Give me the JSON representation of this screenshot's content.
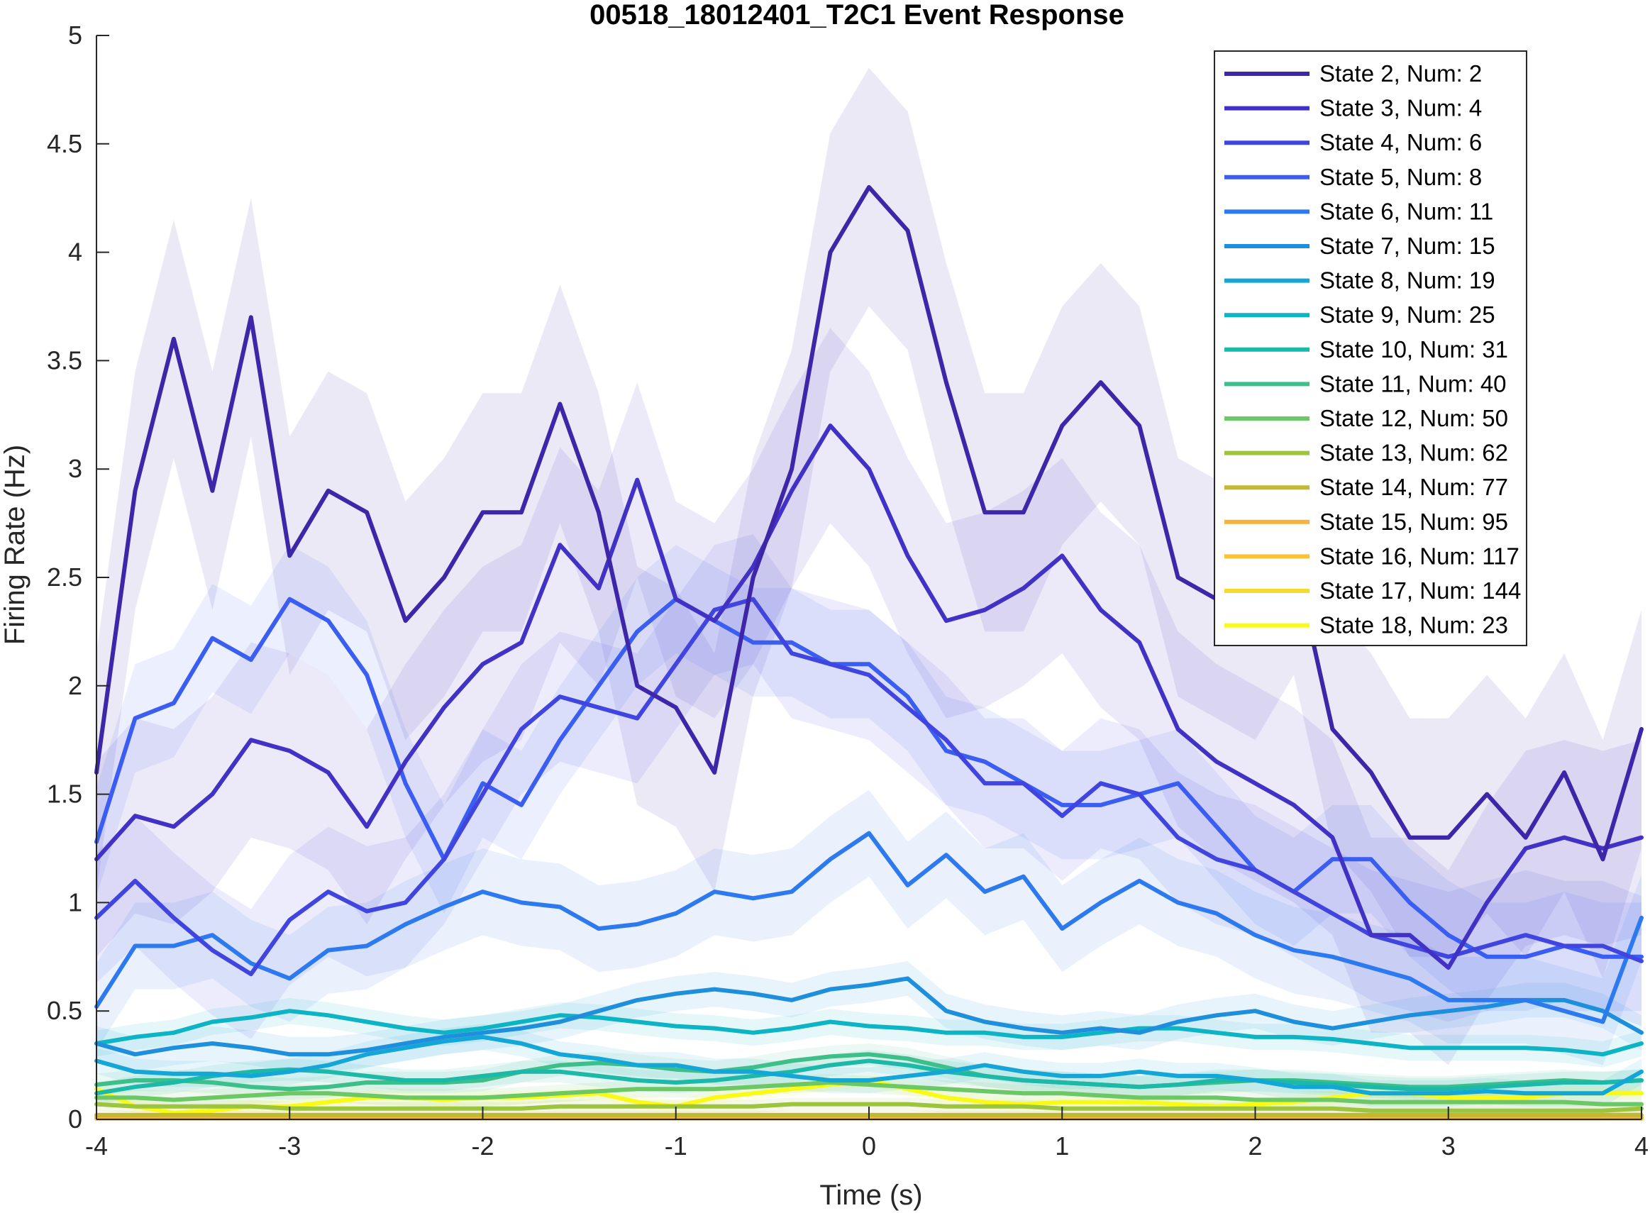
{
  "chart_data": {
    "type": "line",
    "title": "00518_18012401_T2C1 Event Response",
    "xlabel": "Time (s)",
    "ylabel": "Firing Rate (Hz)",
    "xlim": [
      -4,
      4
    ],
    "ylim": [
      0,
      5
    ],
    "xticks": [
      "-4",
      "-3",
      "-2",
      "-1",
      "0",
      "1",
      "2",
      "3",
      "4"
    ],
    "yticks": [
      "0",
      "0.5",
      "1",
      "1.5",
      "2",
      "2.5",
      "3",
      "3.5",
      "4",
      "4.5",
      "5"
    ],
    "legend_position": "top-right",
    "x": [
      -4.0,
      -3.8,
      -3.6,
      -3.4,
      -3.2,
      -3.0,
      -2.8,
      -2.6,
      -2.4,
      -2.2,
      -2.0,
      -1.8,
      -1.6,
      -1.4,
      -1.2,
      -1.0,
      -0.8,
      -0.6,
      -0.4,
      -0.2,
      0.0,
      0.2,
      0.4,
      0.6,
      0.8,
      1.0,
      1.2,
      1.4,
      1.6,
      1.8,
      2.0,
      2.2,
      2.4,
      2.6,
      2.8,
      3.0,
      3.2,
      3.4,
      3.6,
      3.8,
      4.0
    ],
    "series": [
      {
        "name": "State 2, Num: 2",
        "color": "#3e26a8",
        "band": 0.55,
        "values": [
          1.6,
          2.9,
          3.6,
          2.9,
          3.7,
          2.6,
          2.9,
          2.8,
          2.3,
          2.5,
          2.8,
          2.8,
          3.3,
          2.8,
          2.0,
          1.9,
          1.6,
          2.5,
          3.0,
          4.0,
          4.3,
          4.1,
          3.4,
          2.8,
          2.8,
          3.2,
          3.4,
          3.2,
          2.5,
          2.4,
          2.3,
          2.6,
          1.8,
          1.6,
          1.3,
          1.3,
          1.5,
          1.3,
          1.6,
          1.2,
          1.8
        ]
      },
      {
        "name": "State 3, Num: 4",
        "color": "#4132c5",
        "band": 0.45,
        "values": [
          1.2,
          1.4,
          1.35,
          1.5,
          1.75,
          1.7,
          1.6,
          1.35,
          1.65,
          1.9,
          2.1,
          2.2,
          2.65,
          2.45,
          2.95,
          2.4,
          2.3,
          2.55,
          2.9,
          3.2,
          3.0,
          2.6,
          2.3,
          2.35,
          2.45,
          2.6,
          2.35,
          2.2,
          1.8,
          1.65,
          1.55,
          1.45,
          1.3,
          0.85,
          0.85,
          0.7,
          1.0,
          1.25,
          1.3,
          1.25,
          1.3
        ]
      },
      {
        "name": "State 4, Num: 6",
        "color": "#4145e0",
        "band": 0.3,
        "values": [
          0.93,
          1.1,
          0.93,
          0.78,
          0.67,
          0.92,
          1.05,
          0.96,
          1.0,
          1.2,
          1.5,
          1.8,
          1.95,
          1.9,
          1.85,
          2.1,
          2.35,
          2.4,
          2.15,
          2.1,
          2.05,
          1.9,
          1.75,
          1.55,
          1.55,
          1.4,
          1.55,
          1.5,
          1.3,
          1.2,
          1.15,
          1.05,
          0.95,
          0.85,
          0.8,
          0.75,
          0.8,
          0.85,
          0.8,
          0.8,
          0.73
        ]
      },
      {
        "name": "State 5, Num: 8",
        "color": "#3a5ef2",
        "band": 0.25,
        "values": [
          1.28,
          1.85,
          1.92,
          2.22,
          2.12,
          2.4,
          2.3,
          2.05,
          1.55,
          1.2,
          1.55,
          1.45,
          1.75,
          2.0,
          2.25,
          2.4,
          2.3,
          2.2,
          2.2,
          2.1,
          2.1,
          1.95,
          1.7,
          1.65,
          1.55,
          1.45,
          1.45,
          1.5,
          1.55,
          1.35,
          1.15,
          1.05,
          1.2,
          1.2,
          1.0,
          0.85,
          0.75,
          0.75,
          0.8,
          0.75,
          0.75
        ]
      },
      {
        "name": "State 6, Num: 11",
        "color": "#2d7af0",
        "band": 0.2,
        "values": [
          0.52,
          0.8,
          0.8,
          0.85,
          0.72,
          0.65,
          0.78,
          0.8,
          0.9,
          0.98,
          1.05,
          1.0,
          0.98,
          0.88,
          0.9,
          0.95,
          1.05,
          1.02,
          1.05,
          1.2,
          1.32,
          1.08,
          1.22,
          1.05,
          1.12,
          0.88,
          1.0,
          1.1,
          1.0,
          0.95,
          0.85,
          0.78,
          0.75,
          0.7,
          0.65,
          0.55,
          0.55,
          0.55,
          0.5,
          0.45,
          0.93
        ]
      },
      {
        "name": "State 7, Num: 15",
        "color": "#1e8fdd",
        "band": 0.08,
        "values": [
          0.35,
          0.3,
          0.33,
          0.35,
          0.33,
          0.3,
          0.3,
          0.32,
          0.35,
          0.38,
          0.4,
          0.42,
          0.45,
          0.5,
          0.55,
          0.58,
          0.6,
          0.58,
          0.55,
          0.6,
          0.62,
          0.65,
          0.5,
          0.45,
          0.42,
          0.4,
          0.42,
          0.4,
          0.45,
          0.48,
          0.5,
          0.45,
          0.42,
          0.45,
          0.48,
          0.5,
          0.52,
          0.55,
          0.55,
          0.5,
          0.4
        ]
      },
      {
        "name": "State 8, Num: 19",
        "color": "#13a6d6",
        "band": 0.06,
        "values": [
          0.27,
          0.22,
          0.21,
          0.21,
          0.2,
          0.22,
          0.25,
          0.3,
          0.33,
          0.36,
          0.38,
          0.35,
          0.3,
          0.28,
          0.25,
          0.25,
          0.22,
          0.22,
          0.2,
          0.18,
          0.18,
          0.2,
          0.22,
          0.25,
          0.22,
          0.2,
          0.2,
          0.22,
          0.2,
          0.2,
          0.18,
          0.15,
          0.15,
          0.12,
          0.12,
          0.12,
          0.13,
          0.12,
          0.12,
          0.12,
          0.22
        ]
      },
      {
        "name": "State 9, Num: 25",
        "color": "#0cb4c4",
        "band": 0.06,
        "values": [
          0.35,
          0.38,
          0.4,
          0.45,
          0.47,
          0.5,
          0.48,
          0.45,
          0.42,
          0.4,
          0.42,
          0.45,
          0.48,
          0.47,
          0.45,
          0.43,
          0.42,
          0.4,
          0.42,
          0.45,
          0.43,
          0.42,
          0.4,
          0.4,
          0.38,
          0.38,
          0.4,
          0.42,
          0.42,
          0.4,
          0.38,
          0.38,
          0.37,
          0.35,
          0.33,
          0.33,
          0.33,
          0.33,
          0.32,
          0.3,
          0.35
        ]
      },
      {
        "name": "State 10, Num: 31",
        "color": "#1cb8a8",
        "band": 0.05,
        "values": [
          0.12,
          0.15,
          0.17,
          0.2,
          0.22,
          0.23,
          0.22,
          0.2,
          0.18,
          0.18,
          0.2,
          0.22,
          0.22,
          0.2,
          0.18,
          0.17,
          0.18,
          0.2,
          0.22,
          0.25,
          0.27,
          0.25,
          0.22,
          0.2,
          0.18,
          0.17,
          0.16,
          0.15,
          0.16,
          0.18,
          0.18,
          0.17,
          0.16,
          0.15,
          0.14,
          0.14,
          0.15,
          0.16,
          0.17,
          0.17,
          0.18
        ]
      },
      {
        "name": "State 11, Num: 40",
        "color": "#3dbf8a",
        "band": 0.05,
        "values": [
          0.16,
          0.18,
          0.18,
          0.17,
          0.15,
          0.14,
          0.15,
          0.17,
          0.17,
          0.17,
          0.18,
          0.22,
          0.25,
          0.26,
          0.25,
          0.23,
          0.22,
          0.24,
          0.27,
          0.29,
          0.3,
          0.28,
          0.24,
          0.2,
          0.18,
          0.17,
          0.16,
          0.15,
          0.16,
          0.17,
          0.18,
          0.18,
          0.17,
          0.16,
          0.15,
          0.15,
          0.16,
          0.17,
          0.18,
          0.17,
          0.18
        ]
      },
      {
        "name": "State 12, Num: 50",
        "color": "#6cc765",
        "band": 0.04,
        "values": [
          0.1,
          0.1,
          0.09,
          0.1,
          0.11,
          0.12,
          0.12,
          0.11,
          0.1,
          0.1,
          0.1,
          0.11,
          0.12,
          0.13,
          0.14,
          0.14,
          0.14,
          0.15,
          0.16,
          0.17,
          0.16,
          0.15,
          0.14,
          0.13,
          0.12,
          0.12,
          0.11,
          0.1,
          0.1,
          0.1,
          0.09,
          0.09,
          0.09,
          0.08,
          0.08,
          0.08,
          0.08,
          0.08,
          0.08,
          0.07,
          0.07
        ]
      },
      {
        "name": "State 13, Num: 62",
        "color": "#9cc43c",
        "band": 0.03,
        "values": [
          0.07,
          0.06,
          0.06,
          0.06,
          0.06,
          0.05,
          0.05,
          0.05,
          0.05,
          0.05,
          0.05,
          0.05,
          0.06,
          0.06,
          0.06,
          0.06,
          0.06,
          0.06,
          0.07,
          0.07,
          0.07,
          0.07,
          0.06,
          0.06,
          0.06,
          0.05,
          0.05,
          0.05,
          0.05,
          0.05,
          0.05,
          0.05,
          0.05,
          0.04,
          0.04,
          0.04,
          0.04,
          0.04,
          0.04,
          0.04,
          0.05
        ]
      },
      {
        "name": "State 14, Num: 77",
        "color": "#c5b830",
        "band": 0.02,
        "values": [
          0.02,
          0.02,
          0.02,
          0.02,
          0.02,
          0.02,
          0.02,
          0.02,
          0.02,
          0.02,
          0.02,
          0.02,
          0.02,
          0.02,
          0.02,
          0.02,
          0.02,
          0.02,
          0.02,
          0.02,
          0.02,
          0.02,
          0.02,
          0.02,
          0.02,
          0.02,
          0.02,
          0.02,
          0.02,
          0.02,
          0.02,
          0.02,
          0.02,
          0.02,
          0.02,
          0.02,
          0.02,
          0.02,
          0.02,
          0.02,
          0.02
        ]
      },
      {
        "name": "State 15, Num: 95",
        "color": "#f4b33c",
        "band": 0.0,
        "values": [
          0.01,
          0.01,
          0.01,
          0.01,
          0.01,
          0.01,
          0.01,
          0.01,
          0.01,
          0.01,
          0.01,
          0.01,
          0.01,
          0.01,
          0.01,
          0.01,
          0.01,
          0.01,
          0.01,
          0.01,
          0.01,
          0.01,
          0.01,
          0.01,
          0.01,
          0.01,
          0.01,
          0.01,
          0.01,
          0.01,
          0.01,
          0.01,
          0.01,
          0.01,
          0.01,
          0.01,
          0.01,
          0.01,
          0.01,
          0.01,
          0.01
        ]
      },
      {
        "name": "State 16, Num: 117",
        "color": "#fbc330",
        "band": 0.0,
        "values": [
          0.005,
          0.005,
          0.005,
          0.005,
          0.005,
          0.005,
          0.005,
          0.005,
          0.005,
          0.005,
          0.005,
          0.005,
          0.005,
          0.005,
          0.005,
          0.005,
          0.005,
          0.005,
          0.005,
          0.005,
          0.005,
          0.005,
          0.005,
          0.005,
          0.005,
          0.005,
          0.005,
          0.005,
          0.005,
          0.005,
          0.005,
          0.005,
          0.005,
          0.005,
          0.005,
          0.005,
          0.005,
          0.005,
          0.005,
          0.005,
          0.005
        ]
      },
      {
        "name": "State 17, Num: 144",
        "color": "#f4dd2a",
        "band": 0.0,
        "values": [
          0.003,
          0.003,
          0.003,
          0.003,
          0.003,
          0.003,
          0.003,
          0.003,
          0.003,
          0.003,
          0.003,
          0.003,
          0.003,
          0.003,
          0.003,
          0.003,
          0.003,
          0.003,
          0.003,
          0.003,
          0.003,
          0.003,
          0.003,
          0.003,
          0.003,
          0.003,
          0.003,
          0.003,
          0.003,
          0.003,
          0.003,
          0.003,
          0.003,
          0.003,
          0.003,
          0.003,
          0.003,
          0.003,
          0.003,
          0.003,
          0.003
        ]
      },
      {
        "name": "State 18, Num: 23",
        "color": "#f9fb15",
        "band": 0.03,
        "values": [
          0.14,
          0.06,
          0.03,
          0.04,
          0.06,
          0.06,
          0.08,
          0.1,
          0.1,
          0.09,
          0.1,
          0.1,
          0.11,
          0.12,
          0.08,
          0.06,
          0.1,
          0.12,
          0.14,
          0.16,
          0.18,
          0.14,
          0.1,
          0.08,
          0.07,
          0.08,
          0.08,
          0.08,
          0.07,
          0.06,
          0.07,
          0.08,
          0.1,
          0.12,
          0.12,
          0.1,
          0.1,
          0.1,
          0.12,
          0.12,
          0.12
        ]
      }
    ]
  }
}
